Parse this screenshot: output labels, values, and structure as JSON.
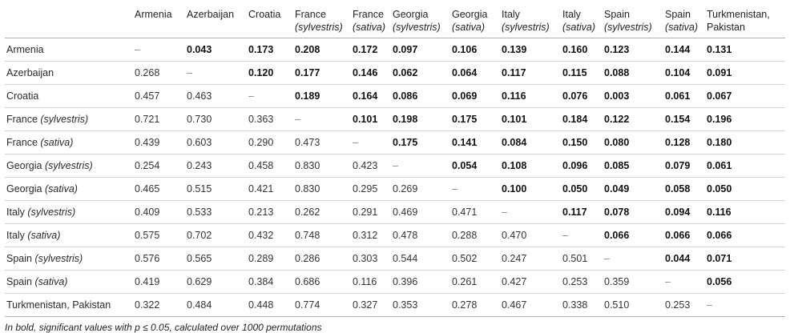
{
  "dash": "–",
  "columns": [
    {
      "line1": "Armenia",
      "line2": ""
    },
    {
      "line1": "Azerbaijan",
      "line2": ""
    },
    {
      "line1": "Croatia",
      "line2": ""
    },
    {
      "line1": "France",
      "line2": "(sylvestris)"
    },
    {
      "line1": "France",
      "line2": "(sativa)"
    },
    {
      "line1": "Georgia",
      "line2": "(sylvestris)"
    },
    {
      "line1": "Georgia",
      "line2": "(sativa)"
    },
    {
      "line1": "Italy",
      "line2": "(sylvestris)"
    },
    {
      "line1": "Italy",
      "line2": "(sativa)"
    },
    {
      "line1": "Spain",
      "line2": "(sylvestris)"
    },
    {
      "line1": "Spain",
      "line2": "(sativa)"
    },
    {
      "line1": "Turkmenistan,",
      "line2": "Pakistan"
    }
  ],
  "rows": [
    {
      "label": "Armenia",
      "qualifier": "",
      "values": [
        "–",
        "0.043",
        "0.173",
        "0.208",
        "0.172",
        "0.097",
        "0.106",
        "0.139",
        "0.160",
        "0.123",
        "0.144",
        "0.131"
      ]
    },
    {
      "label": "Azerbaijan",
      "qualifier": "",
      "values": [
        "0.268",
        "–",
        "0.120",
        "0.177",
        "0.146",
        "0.062",
        "0.064",
        "0.117",
        "0.115",
        "0.088",
        "0.104",
        "0.091"
      ]
    },
    {
      "label": "Croatia",
      "qualifier": "",
      "values": [
        "0.457",
        "0.463",
        "–",
        "0.189",
        "0.164",
        "0.086",
        "0.069",
        "0.116",
        "0.076",
        "0.003",
        "0.061",
        "0.067"
      ]
    },
    {
      "label": "France",
      "qualifier": "(sylvestris)",
      "values": [
        "0.721",
        "0.730",
        "0.363",
        "–",
        "0.101",
        "0.198",
        "0.175",
        "0.101",
        "0.184",
        "0.122",
        "0.154",
        "0.196"
      ]
    },
    {
      "label": "France",
      "qualifier": "(sativa)",
      "values": [
        "0.439",
        "0.603",
        "0.290",
        "0.473",
        "–",
        "0.175",
        "0.141",
        "0.084",
        "0.150",
        "0.080",
        "0.128",
        "0.180"
      ]
    },
    {
      "label": "Georgia",
      "qualifier": "(sylvestris)",
      "values": [
        "0.254",
        "0.243",
        "0.458",
        "0.830",
        "0.423",
        "–",
        "0.054",
        "0.108",
        "0.096",
        "0.085",
        "0.079",
        "0.061"
      ]
    },
    {
      "label": "Georgia",
      "qualifier": "(sativa)",
      "values": [
        "0.465",
        "0.515",
        "0.421",
        "0.830",
        "0.295",
        "0.269",
        "–",
        "0.100",
        "0.050",
        "0.049",
        "0.058",
        "0.050"
      ]
    },
    {
      "label": "Italy",
      "qualifier": "(sylvestris)",
      "values": [
        "0.409",
        "0.533",
        "0.213",
        "0.262",
        "0.291",
        "0.469",
        "0.471",
        "–",
        "0.117",
        "0.078",
        "0.094",
        "0.116"
      ]
    },
    {
      "label": "Italy",
      "qualifier": "(sativa)",
      "values": [
        "0.575",
        "0.702",
        "0.432",
        "0.748",
        "0.312",
        "0.478",
        "0.288",
        "0.470",
        "–",
        "0.066",
        "0.066",
        "0.066"
      ]
    },
    {
      "label": "Spain",
      "qualifier": "(sylvestris)",
      "values": [
        "0.576",
        "0.565",
        "0.289",
        "0.286",
        "0.303",
        "0.544",
        "0.502",
        "0.247",
        "0.501",
        "–",
        "0.044",
        "0.071"
      ]
    },
    {
      "label": "Spain",
      "qualifier": "(sativa)",
      "values": [
        "0.419",
        "0.629",
        "0.384",
        "0.686",
        "0.116",
        "0.396",
        "0.261",
        "0.427",
        "0.253",
        "0.359",
        "–",
        "0.056"
      ]
    },
    {
      "label": "Turkmenistan, Pakistan",
      "qualifier": "",
      "values": [
        "0.322",
        "0.484",
        "0.448",
        "0.774",
        "0.327",
        "0.353",
        "0.278",
        "0.467",
        "0.338",
        "0.510",
        "0.253",
        "–"
      ]
    }
  ],
  "footnote": {
    "prefix": "In bold, significant values with ",
    "variable": "p",
    "suffix": " ≤ 0.05, calculated over 1000 permutations"
  }
}
